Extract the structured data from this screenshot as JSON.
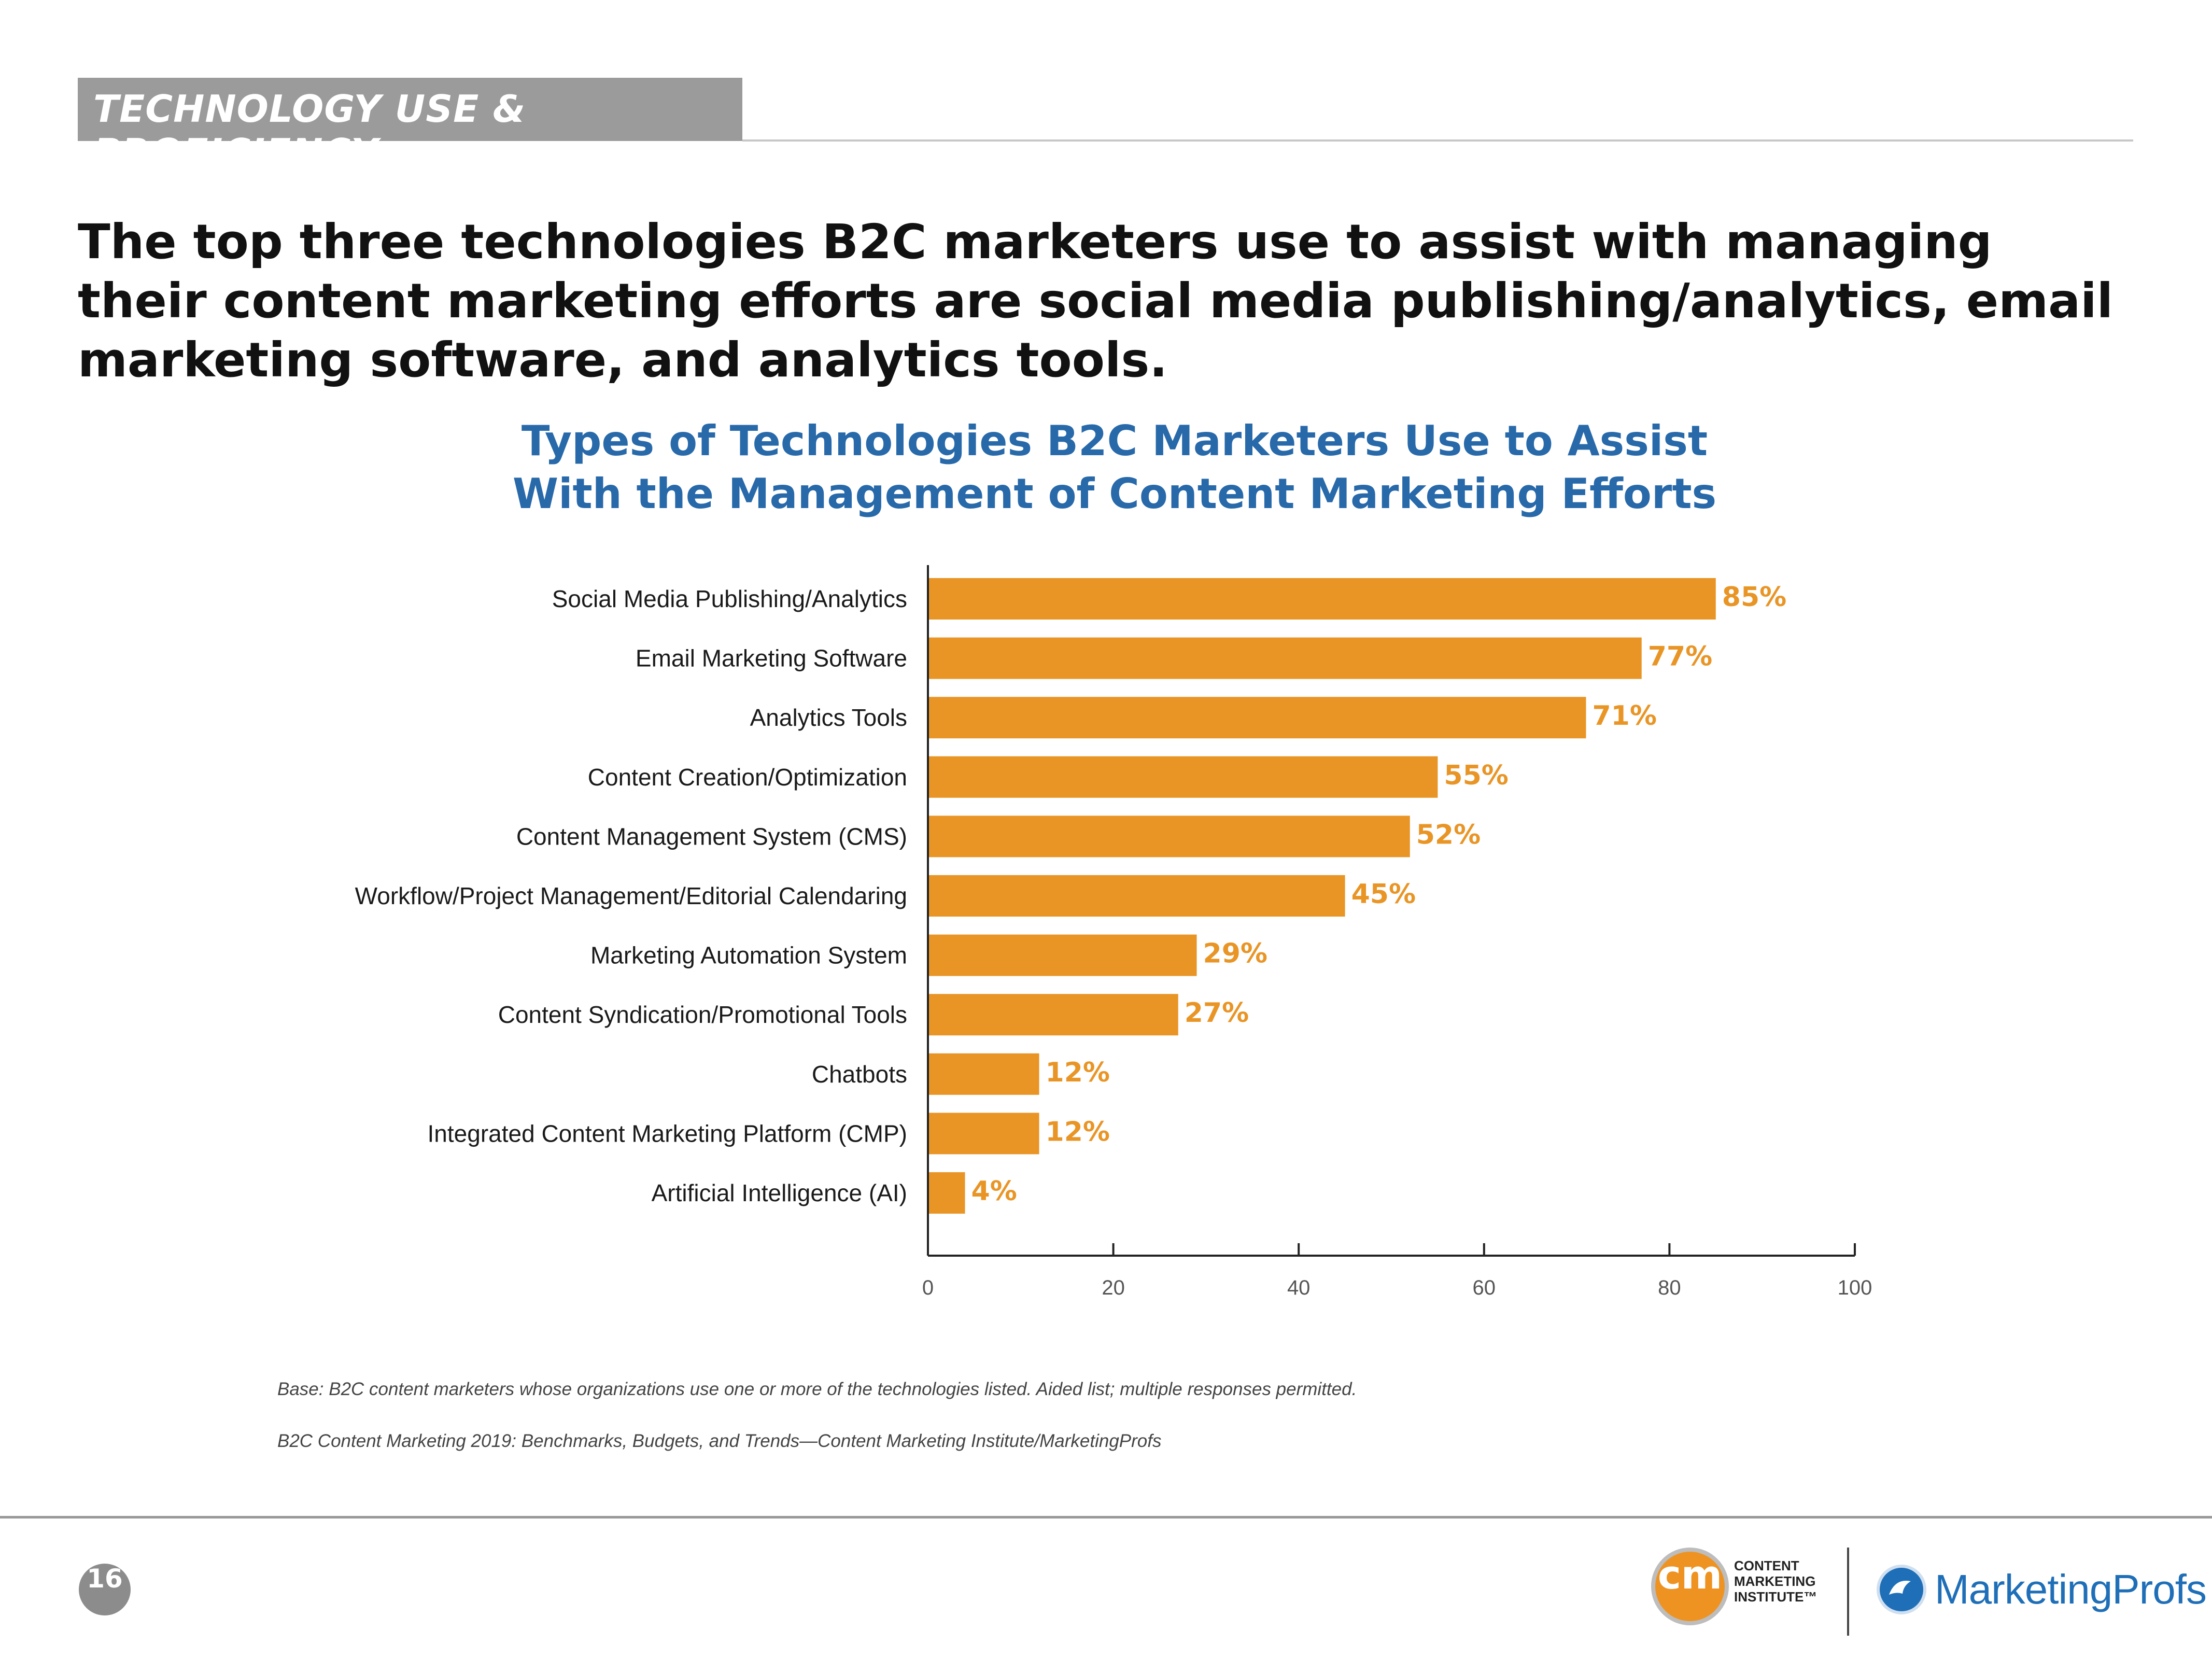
{
  "section": {
    "label": "TECHNOLOGY USE & PROFICIENCY"
  },
  "headline": "The top three technologies B2C marketers use to assist with managing their content marketing efforts are social media publishing/analytics, email marketing software, and analytics tools.",
  "chart_data": {
    "type": "bar",
    "orientation": "horizontal",
    "title": "Types of Technologies B2C Marketers Use to Assist With the Management of Content Marketing Efforts",
    "title_lines": [
      "Types of Technologies B2C Marketers Use to Assist",
      "With the Management of Content Marketing Efforts"
    ],
    "categories": [
      "Social Media Publishing/Analytics",
      "Email Marketing Software",
      "Analytics Tools",
      "Content Creation/Optimization",
      "Content Management System (CMS)",
      "Workflow/Project Management/Editorial Calendaring",
      "Marketing Automation System",
      "Content Syndication/Promotional Tools",
      "Chatbots",
      "Integrated Content Marketing Platform (CMP)",
      "Artificial Intelligence (AI)"
    ],
    "values": [
      85,
      77,
      71,
      55,
      52,
      45,
      29,
      27,
      12,
      12,
      4
    ],
    "value_labels": [
      "85%",
      "77%",
      "71%",
      "55%",
      "52%",
      "45%",
      "29%",
      "27%",
      "12%",
      "12%",
      "4%"
    ],
    "xlim": [
      0,
      100
    ],
    "xticks": [
      0,
      20,
      40,
      60,
      80,
      100
    ],
    "xlabel": "",
    "ylabel": "",
    "bar_color": "#e99526",
    "grid": false
  },
  "footnotes": {
    "base": "Base: B2C content marketers whose organizations use one or more of the technologies listed. Aided list; multiple responses permitted.",
    "source": "B2C Content Marketing 2019: Benchmarks, Budgets, and Trends—Content Marketing Institute/MarketingProfs"
  },
  "footer": {
    "page_number": "16",
    "cmi_mark": "cm",
    "cmi_lines": [
      "CONTENT",
      "MARKETING",
      "INSTITUTE™"
    ],
    "mp_name": "MarketingProfs"
  }
}
